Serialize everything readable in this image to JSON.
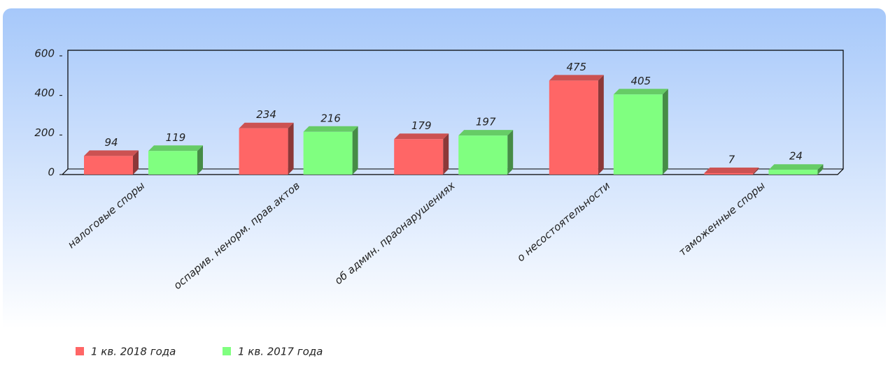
{
  "chart_data": {
    "type": "bar3d",
    "categories": [
      "налоговые споры",
      "оспарив. ненорм. прав.актов",
      "об админ. праонарушениях",
      "о несостоятельности",
      "таможенные споры"
    ],
    "series": [
      {
        "name": "1 кв. 2018 года",
        "color": "#ff6666",
        "values": [
          94,
          234,
          179,
          475,
          7
        ]
      },
      {
        "name": "1 кв. 2017 года",
        "color": "#80ff80",
        "values": [
          119,
          216,
          197,
          405,
          24
        ]
      }
    ],
    "ylim": [
      0,
      600
    ],
    "yticks": [
      0,
      200,
      400,
      600
    ],
    "legend": "bottom-left"
  }
}
